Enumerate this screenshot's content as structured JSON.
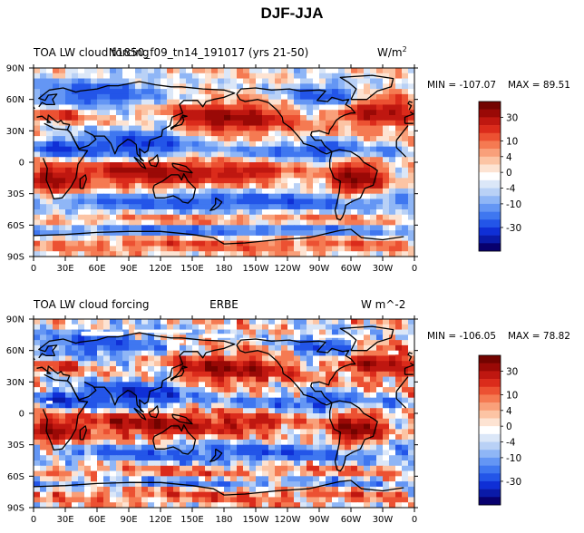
{
  "figure_title": "DJF-JJA",
  "chart_data": [
    {
      "type": "heatmap",
      "left_title": "TOA LW cloud forcing",
      "center_title": "N1850_f09_tn14_191017 (yrs 21-50)",
      "units_prefix": "W/m",
      "units_sup": "2",
      "stats": {
        "min": -107.07,
        "max": 89.51
      },
      "min_label": "MIN = -107.07",
      "max_label": "MAX =  89.51",
      "x_ticks": [
        "0",
        "30E",
        "60E",
        "90E",
        "120E",
        "150E",
        "180",
        "150W",
        "120W",
        "90W",
        "60W",
        "30W",
        "0"
      ],
      "y_ticks": [
        "90N",
        "60N",
        "30N",
        "0",
        "30S",
        "60S",
        "90S"
      ],
      "colorbar_labels": [
        "30",
        "10",
        "4",
        "0",
        "-4",
        "-10",
        "-30"
      ],
      "colorbar_levels": [
        -50,
        -40,
        -30,
        -20,
        -15,
        -10,
        -6,
        -4,
        -2,
        0,
        2,
        4,
        6,
        10,
        15,
        20,
        30,
        40,
        50
      ]
    },
    {
      "type": "heatmap",
      "left_title": "TOA LW cloud forcing",
      "center_title": "ERBE",
      "units_prefix": "W m^-2",
      "units_sup": "",
      "stats": {
        "min": -106.05,
        "max": 78.82
      },
      "min_label": "MIN = -106.05",
      "max_label": "MAX =  78.82",
      "x_ticks": [
        "0",
        "30E",
        "60E",
        "90E",
        "120E",
        "150E",
        "180",
        "150W",
        "120W",
        "90W",
        "60W",
        "30W",
        "0"
      ],
      "y_ticks": [
        "90N",
        "60N",
        "30N",
        "0",
        "30S",
        "60S",
        "90S"
      ],
      "colorbar_labels": [
        "30",
        "10",
        "4",
        "0",
        "-4",
        "-10",
        "-30"
      ],
      "colorbar_levels": [
        -50,
        -40,
        -30,
        -20,
        -15,
        -10,
        -6,
        -4,
        -2,
        0,
        2,
        4,
        6,
        10,
        15,
        20,
        30,
        40,
        50
      ]
    }
  ],
  "colors": {
    "scale": [
      "#08006e",
      "#0a1aa8",
      "#0f2fd6",
      "#2355e8",
      "#3f77f0",
      "#6496f4",
      "#8fb6f6",
      "#b9d1f6",
      "#dbe7f8",
      "#ffffff",
      "#fde3d2",
      "#fcc4a4",
      "#f9a07a",
      "#f57a52",
      "#ec5132",
      "#db2b1b",
      "#bf1710",
      "#9a0906",
      "#730300"
    ],
    "missing": "#ffffff",
    "coast": "#000000"
  }
}
